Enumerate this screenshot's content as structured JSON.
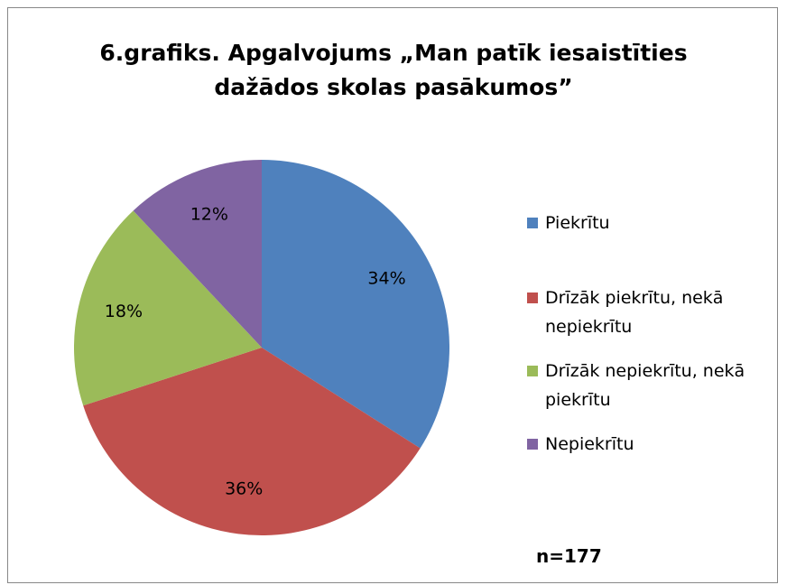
{
  "chart_data": {
    "type": "pie",
    "title": "6.grafiks. Apgalvojums „Man patīk iesaistīties dažādos skolas pasākumos”",
    "categories": [
      "Piekrītu",
      "Drīzāk piekrītu, nekā nepiekrītu",
      "Drīzāk nepiekrītu, nekā piekrītu",
      "Nepiekrītu"
    ],
    "values": [
      34,
      36,
      18,
      12
    ],
    "value_labels": [
      "34%",
      "36%",
      "18%",
      "12%"
    ],
    "colors": [
      "#4f81bd",
      "#c0504d",
      "#9bbb59",
      "#8064a2"
    ],
    "annotation": "n=177"
  }
}
